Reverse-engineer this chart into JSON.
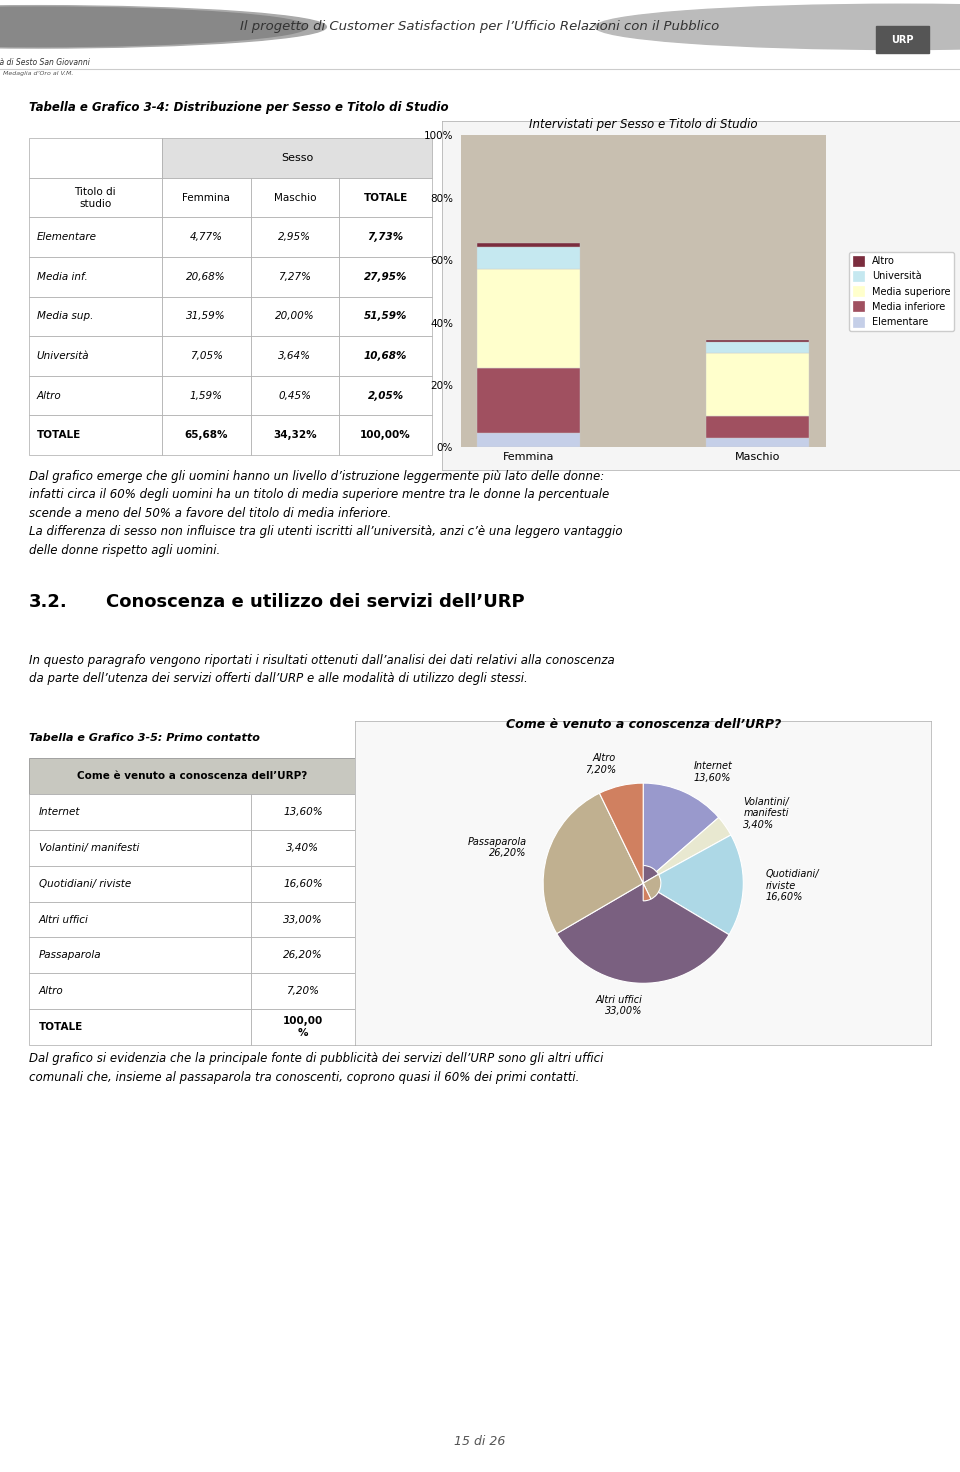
{
  "page_title": "Il progetto di Customer Satisfaction per l’Ufficio Relazioni con il Pubblico",
  "city_name": "Città di Sesto San Giovanni",
  "city_subtitle": "Medaglia d’Oro al V.M.",
  "table1_title": "Tabella e Grafico 3-4: Distribuzione per Sesso e Titolo di Studio",
  "table1_rows": [
    [
      "Elementare",
      "4,77%",
      "2,95%",
      "7,73%"
    ],
    [
      "Media inf.",
      "20,68%",
      "7,27%",
      "27,95%"
    ],
    [
      "Media sup.",
      "31,59%",
      "20,00%",
      "51,59%"
    ],
    [
      "Università",
      "7,05%",
      "3,64%",
      "10,68%"
    ],
    [
      "Altro",
      "1,59%",
      "0,45%",
      "2,05%"
    ],
    [
      "TOTALE",
      "65,68%",
      "34,32%",
      "100,00%"
    ]
  ],
  "chart1_title": "Intervistati per Sesso e Titolo di Studio",
  "chart1_categories": [
    "Femmina",
    "Maschio"
  ],
  "chart1_series": {
    "Elementare": [
      4.77,
      2.95
    ],
    "Media inferiore": [
      20.68,
      7.27
    ],
    "Media superiore": [
      31.59,
      20.0
    ],
    "Università": [
      7.05,
      3.64
    ],
    "Altro": [
      1.59,
      0.45
    ]
  },
  "chart1_colors": {
    "Elementare": "#c5cfe8",
    "Media inferiore": "#a05060",
    "Media superiore": "#ffffcc",
    "Università": "#c5e8f0",
    "Altro": "#7b2d3e"
  },
  "chart1_bar_bgcolor": "#c8bfb0",
  "chart1_legend_order": [
    "Altro",
    "Università",
    "Media superiore",
    "Media inferiore",
    "Elementare"
  ],
  "text1_lines": [
    "Dal grafico emerge che gli uomini hanno un livello d’istruzione leggermente più lato delle donne:",
    "infatti circa il 60% degli uomini ha un titolo di media superiore mentre tra le donne la percentuale",
    "scende a meno del 50% a favore del titolo di media inferiore.",
    "La differenza di sesso non influisce tra gli utenti iscritti all’università, anzi c’è una leggero vantaggio",
    "delle donne rispetto agli uomini."
  ],
  "section_num": "3.2.",
  "section_title": "Conoscenza e utilizzo dei servizi dell’URP",
  "section_text_lines": [
    "In questo paragrafo vengono riportati i risultati ottenuti dall’analisi dei dati relativi alla conoscenza",
    "da parte dell’utenza dei servizi offerti dall’URP e alle modalità di utilizzo degli stessi."
  ],
  "table2_title": "Tabella e Grafico 3-5: Primo contatto",
  "table2_header": "Come è venuto a conoscenza dell’URP?",
  "table2_rows": [
    [
      "Internet",
      "13,60%"
    ],
    [
      "Volantini/ manifesti",
      "3,40%"
    ],
    [
      "Quotidiani/ riviste",
      "16,60%"
    ],
    [
      "Altri uffici",
      "33,00%"
    ],
    [
      "Passaparola",
      "26,20%"
    ],
    [
      "Altro",
      "7,20%"
    ],
    [
      "TOTALE",
      "100,00\n%"
    ]
  ],
  "chart2_title": "Come è venuto a conoscenza dell’URP?",
  "chart2_values": [
    13.6,
    3.4,
    16.6,
    33.0,
    26.2,
    7.2
  ],
  "chart2_colors": [
    "#9999cc",
    "#e8e8d0",
    "#add8e6",
    "#7a6080",
    "#c0b090",
    "#d08060"
  ],
  "chart2_label_names": [
    "Internet",
    "Volantini/\nmanifesti",
    "Quotidiani/\nriviste",
    "Altri uffici",
    "Passaparola",
    "Altro"
  ],
  "chart2_pct_labels": [
    "13,60%",
    "3,40%",
    "16,60%",
    "33,00%",
    "26,20%",
    "7,20%"
  ],
  "text2_lines": [
    "Dal grafico si evidenzia che la principale fonte di pubblicità dei servizi dell’URP sono gli altri uffici",
    "comunali che, insieme al passaparola tra conoscenti, coprono quasi il 60% dei primi contatti."
  ],
  "page_num": "15 di 26",
  "bg_color": "#ffffff"
}
